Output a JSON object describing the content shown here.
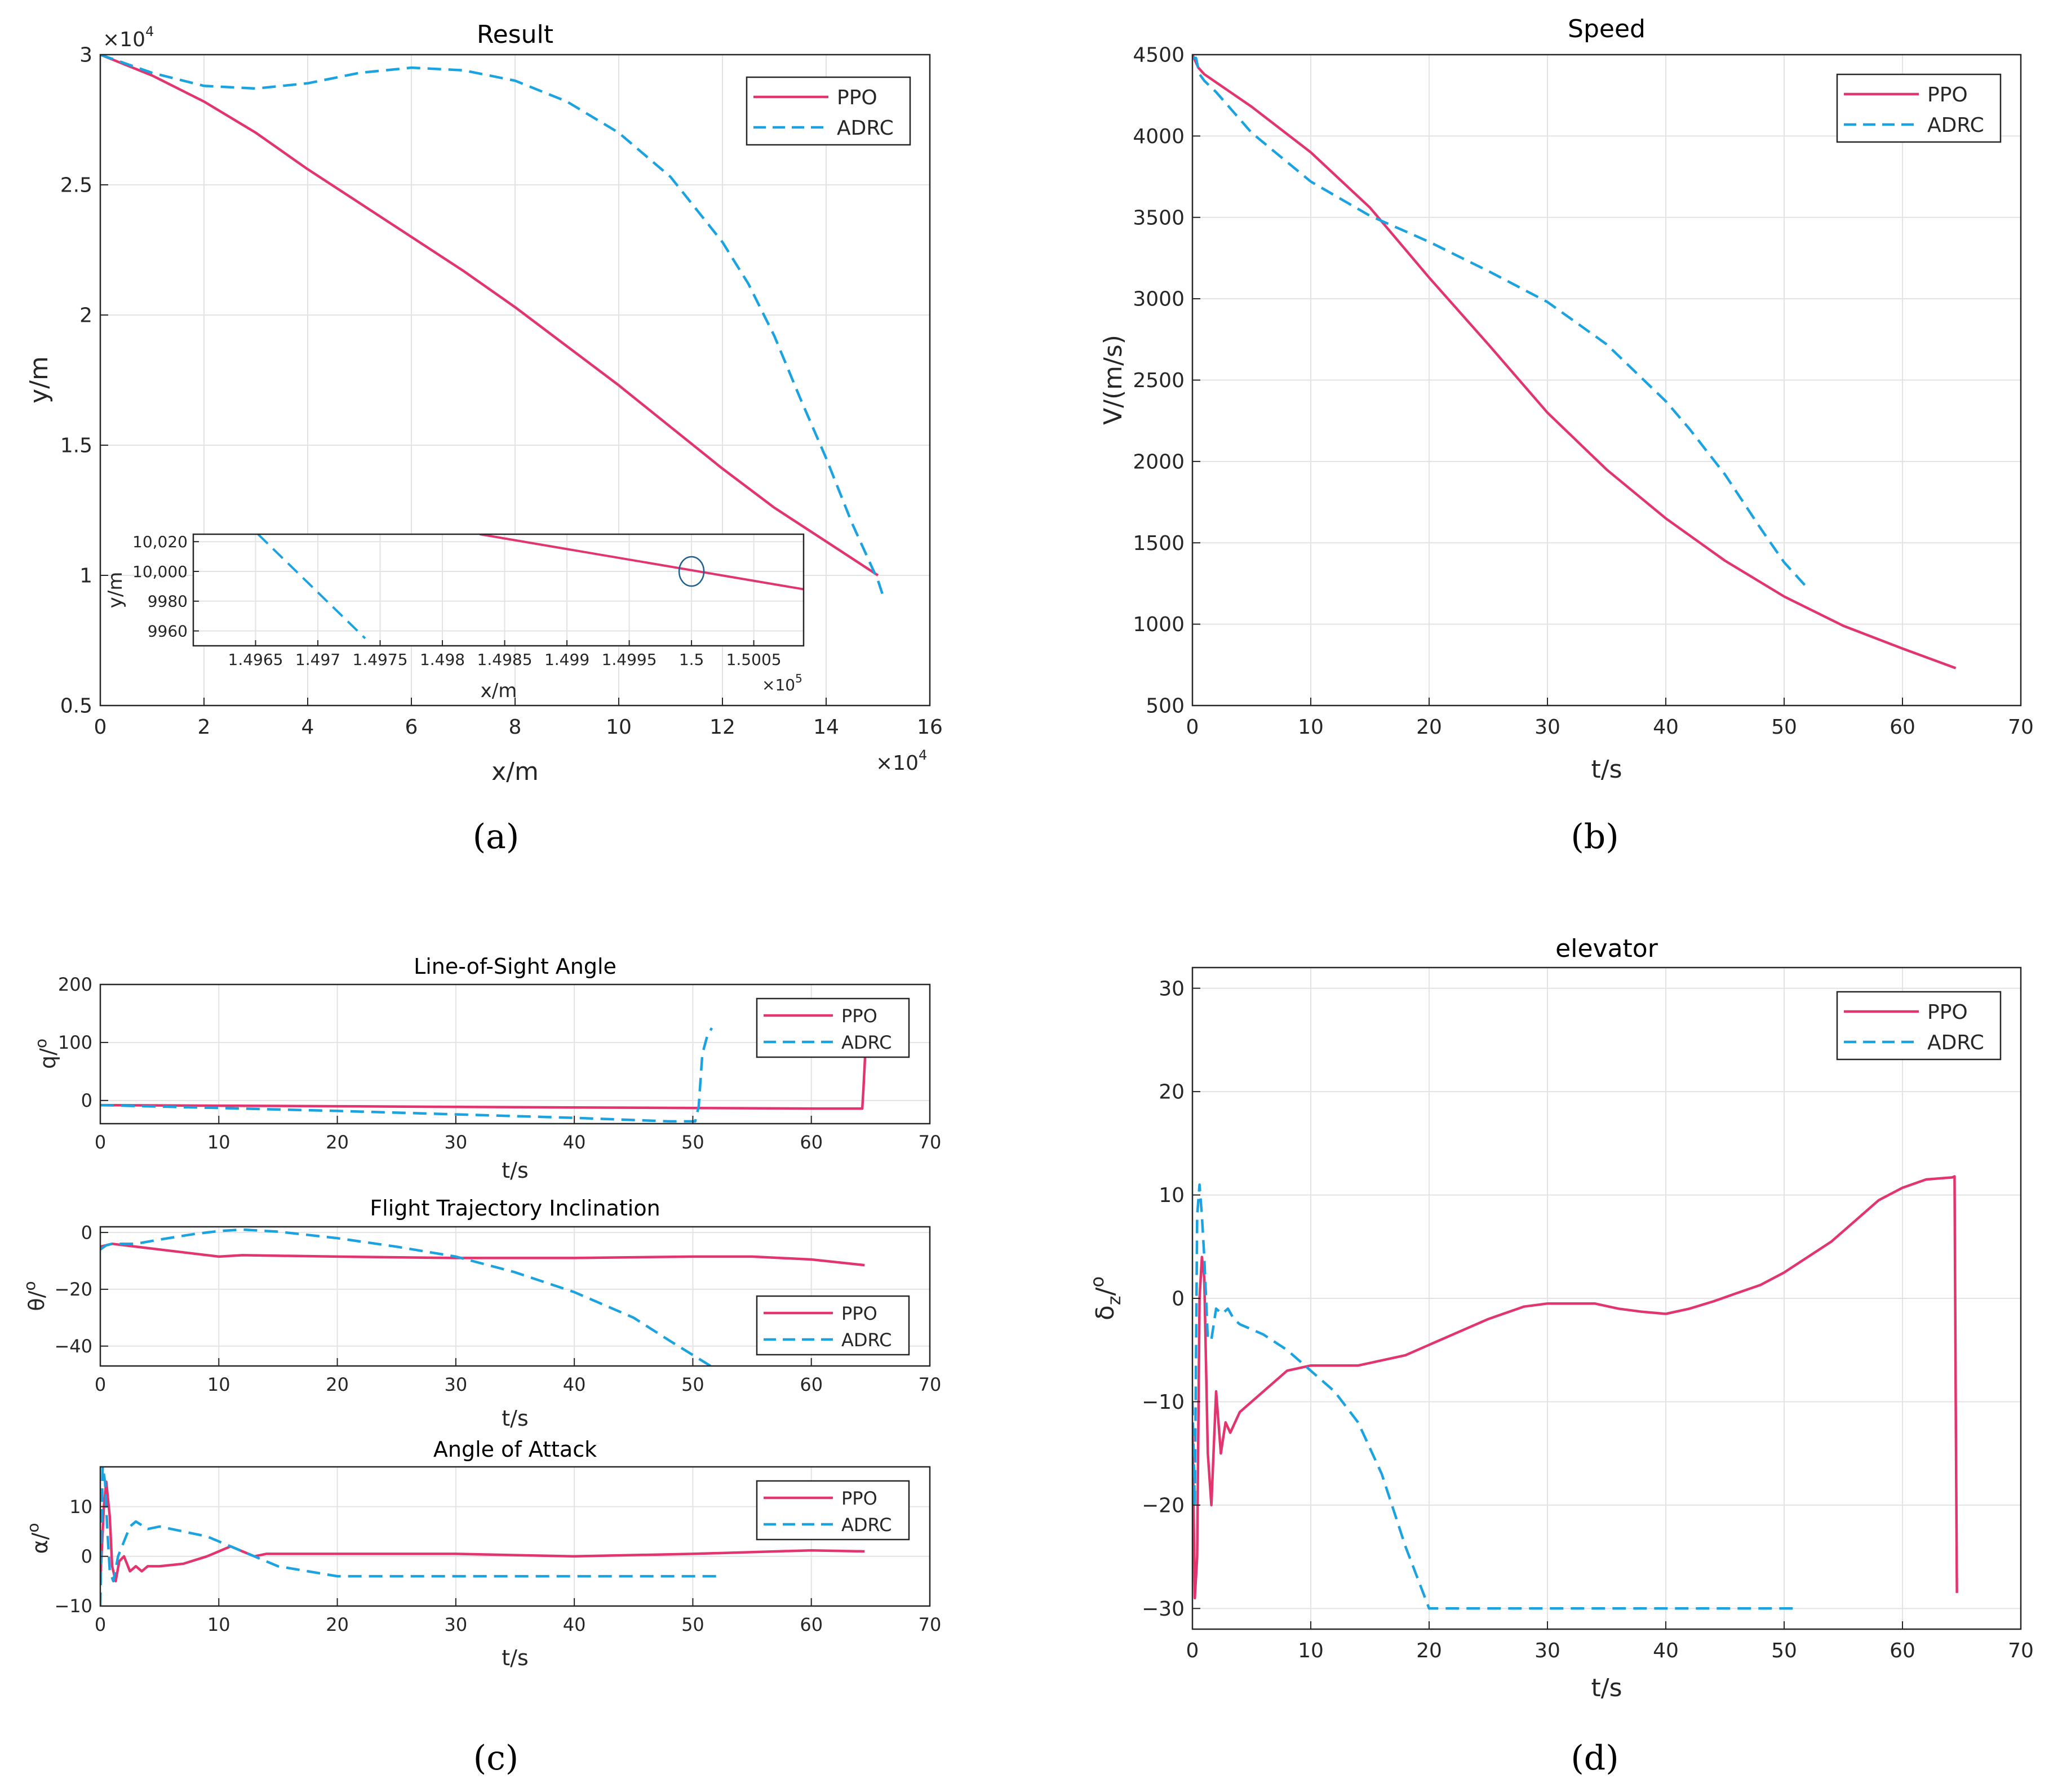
{
  "colors": {
    "ppo": "#e2356e",
    "adrc": "#1aa3e0",
    "grid": "#e3e3e3",
    "axis": "#262626"
  },
  "captions": [
    "(a)",
    "(b)",
    "(c)",
    "(d)"
  ],
  "chart_data": [
    {
      "id": "result",
      "type": "line",
      "title": "Result",
      "xlabel": "x/m",
      "ylabel": "y/m",
      "xlim": [
        0,
        16
      ],
      "ylim": [
        0.5,
        3
      ],
      "xticks": [
        0,
        2,
        4,
        6,
        8,
        10,
        12,
        14,
        16
      ],
      "xtick_labels": [
        "0",
        "2",
        "4",
        "6",
        "8",
        "10",
        "12",
        "14",
        "16"
      ],
      "yticks": [
        0.5,
        1,
        1.5,
        2,
        2.5,
        3
      ],
      "ytick_labels": [
        "0.5",
        "1",
        "1.5",
        "2",
        "2.5",
        "3"
      ],
      "x_exponent": "×10",
      "x_exponent_power": "4",
      "y_exponent": "×10",
      "y_exponent_power": "4",
      "legend": [
        "PPO",
        "ADRC"
      ],
      "series": [
        {
          "name": "PPO",
          "x": [
            0,
            1,
            2,
            3,
            4,
            5,
            6,
            7,
            8,
            9,
            10,
            11,
            12,
            13,
            14,
            15
          ],
          "y": [
            3.0,
            2.92,
            2.82,
            2.7,
            2.56,
            2.43,
            2.3,
            2.17,
            2.03,
            1.88,
            1.73,
            1.57,
            1.41,
            1.26,
            1.13,
            1.0
          ]
        },
        {
          "name": "ADRC",
          "x": [
            0,
            1,
            2,
            3,
            4,
            5,
            6,
            7,
            8,
            9,
            10,
            11,
            12,
            12.5,
            13,
            13.5,
            14,
            14.5,
            15,
            15.1
          ],
          "y": [
            3.0,
            2.93,
            2.88,
            2.87,
            2.89,
            2.93,
            2.95,
            2.94,
            2.9,
            2.82,
            2.7,
            2.53,
            2.28,
            2.12,
            1.92,
            1.68,
            1.45,
            1.2,
            0.98,
            0.92
          ]
        }
      ],
      "inset": {
        "xlabel": "x/m",
        "ylabel": "y/m",
        "xlim": [
          1.496,
          1.5009
        ],
        "ylim": [
          9950,
          10025
        ],
        "xticks": [
          1.4965,
          1.497,
          1.4975,
          1.498,
          1.4985,
          1.499,
          1.4995,
          1.5,
          1.5005
        ],
        "xtick_labels": [
          "1.4965",
          "1.497",
          "1.4975",
          "1.498",
          "1.4985",
          "1.499",
          "1.4995",
          "1.5",
          "1.5005"
        ],
        "yticks": [
          9960,
          9980,
          10000,
          10020
        ],
        "ytick_labels": [
          "9960",
          "9980",
          "10,000",
          "10,020"
        ],
        "x_exponent": "×10",
        "x_exponent_power": "5",
        "series": [
          {
            "name": "PPO",
            "x": [
              1.4983,
              1.5009
            ],
            "y": [
              10025,
              9988
            ]
          },
          {
            "name": "ADRC",
            "x": [
              1.49652,
              1.49738
            ],
            "y": [
              10025,
              9955
            ]
          }
        ],
        "target": {
          "x": 1.5,
          "y": 10000
        }
      }
    },
    {
      "id": "speed",
      "type": "line",
      "title": "Speed",
      "xlabel": "t/s",
      "ylabel": "V/(m/s)",
      "xlim": [
        0,
        70
      ],
      "ylim": [
        500,
        4500
      ],
      "xticks": [
        0,
        10,
        20,
        30,
        40,
        50,
        60,
        70
      ],
      "xtick_labels": [
        "0",
        "10",
        "20",
        "30",
        "40",
        "50",
        "60",
        "70"
      ],
      "yticks": [
        500,
        1000,
        1500,
        2000,
        2500,
        3000,
        3500,
        4000,
        4500
      ],
      "ytick_labels": [
        "500",
        "1000",
        "1500",
        "2000",
        "2500",
        "3000",
        "3500",
        "4000",
        "4500"
      ],
      "legend": [
        "PPO",
        "ADRC"
      ],
      "series": [
        {
          "name": "PPO",
          "x": [
            0,
            0.5,
            1,
            5,
            10,
            15,
            20,
            25,
            30,
            35,
            40,
            45,
            50,
            55,
            60,
            64.5
          ],
          "y": [
            4500,
            4420,
            4380,
            4180,
            3900,
            3560,
            3130,
            2720,
            2300,
            1950,
            1650,
            1390,
            1170,
            990,
            850,
            730
          ]
        },
        {
          "name": "ADRC",
          "x": [
            0,
            0.3,
            0.6,
            1,
            2,
            5,
            10,
            15,
            20,
            25,
            30,
            35,
            40,
            42,
            45,
            48,
            50,
            52
          ],
          "y": [
            4480,
            4480,
            4380,
            4340,
            4270,
            4020,
            3720,
            3510,
            3350,
            3170,
            2980,
            2720,
            2370,
            2200,
            1920,
            1590,
            1380,
            1220
          ]
        }
      ]
    },
    {
      "id": "los",
      "type": "line",
      "title": "Line-of-Sight Angle",
      "xlabel": "t/s",
      "ylabel": "q/",
      "ylabel_sup": "o",
      "xlim": [
        0,
        70
      ],
      "ylim": [
        -40,
        200
      ],
      "xticks": [
        0,
        10,
        20,
        30,
        40,
        50,
        60,
        70
      ],
      "xtick_labels": [
        "0",
        "10",
        "20",
        "30",
        "40",
        "50",
        "60",
        "70"
      ],
      "yticks": [
        0,
        100,
        200
      ],
      "ytick_labels": [
        "0",
        "100",
        "200"
      ],
      "legend": [
        "PPO",
        "ADRC"
      ],
      "series": [
        {
          "name": "PPO",
          "x": [
            0,
            10,
            20,
            30,
            40,
            50,
            60,
            64.3,
            64.4,
            64.6
          ],
          "y": [
            -8,
            -9,
            -10,
            -11,
            -12,
            -13,
            -14,
            -14,
            20,
            100
          ]
        },
        {
          "name": "ADRC",
          "x": [
            0,
            10,
            20,
            30,
            40,
            48,
            50.2,
            50.5,
            50.8,
            51.2,
            51.6
          ],
          "y": [
            -8,
            -13,
            -18,
            -24,
            -30,
            -36,
            -36,
            -10,
            80,
            110,
            125
          ]
        }
      ]
    },
    {
      "id": "fti",
      "type": "line",
      "title": "Flight Trajectory Inclination",
      "xlabel": "t/s",
      "ylabel": "θ/",
      "ylabel_sup": "o",
      "xlim": [
        0,
        70
      ],
      "ylim": [
        -47,
        2
      ],
      "xticks": [
        0,
        10,
        20,
        30,
        40,
        50,
        60,
        70
      ],
      "xtick_labels": [
        "0",
        "10",
        "20",
        "30",
        "40",
        "50",
        "60",
        "70"
      ],
      "yticks": [
        -40,
        -20,
        0
      ],
      "ytick_labels": [
        "−40",
        "−20",
        "0"
      ],
      "legend": [
        "PPO",
        "ADRC"
      ],
      "series": [
        {
          "name": "PPO",
          "x": [
            0,
            1,
            5,
            10,
            12,
            20,
            30,
            40,
            50,
            55,
            60,
            64.5
          ],
          "y": [
            -5,
            -4,
            -6,
            -8.5,
            -8,
            -8.5,
            -9,
            -9,
            -8.5,
            -8.5,
            -9.5,
            -11.5
          ]
        },
        {
          "name": "ADRC",
          "x": [
            0,
            0.5,
            1,
            3,
            5,
            8,
            10,
            12,
            15,
            20,
            25,
            30,
            35,
            40,
            45,
            48,
            51.5
          ],
          "y": [
            -6,
            -4.5,
            -4,
            -4,
            -2.5,
            -0.5,
            0.5,
            1,
            0.3,
            -2,
            -5,
            -8.5,
            -14,
            -21,
            -30,
            -38,
            -47
          ]
        }
      ]
    },
    {
      "id": "aoa",
      "type": "line",
      "title": "Angle of Attack",
      "xlabel": "t/s",
      "ylabel": "α/",
      "ylabel_sup": "o",
      "xlim": [
        0,
        70
      ],
      "ylim": [
        -10,
        18
      ],
      "xticks": [
        0,
        10,
        20,
        30,
        40,
        50,
        60,
        70
      ],
      "xtick_labels": [
        "0",
        "10",
        "20",
        "30",
        "40",
        "50",
        "60",
        "70"
      ],
      "yticks": [
        -10,
        0,
        10
      ],
      "ytick_labels": [
        "−10",
        "0",
        "10"
      ],
      "legend": [
        "PPO",
        "ADRC"
      ],
      "series": [
        {
          "name": "PPO",
          "x": [
            0,
            0.3,
            0.5,
            0.8,
            1.0,
            1.3,
            1.6,
            2.0,
            2.5,
            3.0,
            3.5,
            4,
            5,
            7,
            9,
            10,
            11,
            12,
            13,
            14,
            15,
            20,
            30,
            40,
            50,
            60,
            64.5
          ],
          "y": [
            -5,
            10,
            15,
            8,
            -2,
            -5,
            -1,
            0,
            -3,
            -2,
            -3,
            -2,
            -2,
            -1.5,
            0,
            1,
            2,
            1,
            0,
            0.5,
            0.5,
            0.5,
            0.5,
            0,
            0.5,
            1.2,
            1
          ]
        },
        {
          "name": "ADRC",
          "x": [
            0,
            0.2,
            0.4,
            0.6,
            0.8,
            1.1,
            1.5,
            2.0,
            2.5,
            3.0,
            4,
            5,
            7,
            9,
            10,
            12,
            15,
            20,
            30,
            40,
            50,
            52
          ],
          "y": [
            -10,
            18,
            15,
            5,
            -3,
            -5,
            0,
            3,
            6,
            7,
            5.5,
            6,
            5,
            4,
            3,
            1,
            -2,
            -4,
            -4,
            -4,
            -4,
            -4
          ]
        }
      ]
    },
    {
      "id": "elevator",
      "type": "line",
      "title": "elevator",
      "xlabel": "t/s",
      "ylabel": "δ",
      "ylabel_sub": "z",
      "ylabel_tail": "/",
      "ylabel_sup": "o",
      "xlim": [
        0,
        70
      ],
      "ylim": [
        -32,
        32
      ],
      "xticks": [
        0,
        10,
        20,
        30,
        40,
        50,
        60,
        70
      ],
      "xtick_labels": [
        "0",
        "10",
        "20",
        "30",
        "40",
        "50",
        "60",
        "70"
      ],
      "yticks": [
        -30,
        -20,
        -10,
        0,
        10,
        20,
        30
      ],
      "ytick_labels": [
        "−30",
        "−20",
        "−10",
        "0",
        "10",
        "20",
        "30"
      ],
      "legend": [
        "PPO",
        "ADRC"
      ],
      "series": [
        {
          "name": "PPO",
          "x": [
            0,
            0.2,
            0.4,
            0.6,
            0.8,
            1.0,
            1.3,
            1.6,
            2.0,
            2.4,
            2.8,
            3.2,
            3.6,
            4,
            5,
            6,
            8,
            10,
            12,
            14,
            16,
            18,
            20,
            22,
            25,
            28,
            30,
            32,
            34,
            36,
            38,
            40,
            42,
            44,
            46,
            48,
            50,
            52,
            54,
            56,
            58,
            60,
            62,
            64.2,
            64.4,
            64.5,
            64.6
          ],
          "y": [
            -12,
            -29,
            -25,
            0,
            4,
            2,
            -15,
            -20,
            -9,
            -15,
            -12,
            -13,
            -12,
            -11,
            -10,
            -9,
            -7,
            -6.5,
            -6.5,
            -6.5,
            -6,
            -5.5,
            -4.5,
            -3.5,
            -2,
            -0.8,
            -0.5,
            -0.5,
            -0.5,
            -1,
            -1.3,
            -1.5,
            -1,
            -0.3,
            0.5,
            1.3,
            2.5,
            4,
            5.5,
            7.5,
            9.5,
            10.7,
            11.5,
            11.7,
            11.8,
            -10,
            -28.5
          ]
        },
        {
          "name": "ADRC",
          "x": [
            0,
            0.2,
            0.4,
            0.6,
            0.8,
            1.0,
            1.3,
            1.6,
            2.0,
            2.5,
            3.0,
            3.5,
            4,
            5,
            6,
            8,
            10,
            12,
            14,
            16,
            18,
            20,
            25,
            30,
            40,
            51
          ],
          "y": [
            -10,
            -20,
            8,
            11,
            8,
            4,
            -4,
            -4,
            -1,
            -1.5,
            -1,
            -2,
            -2.5,
            -3,
            -3.5,
            -5,
            -7,
            -9,
            -12,
            -17,
            -24,
            -30,
            -30,
            -30,
            -30,
            -30
          ]
        }
      ]
    }
  ]
}
